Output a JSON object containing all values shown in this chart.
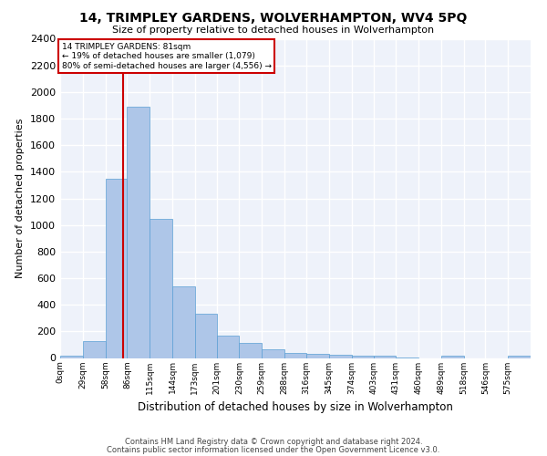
{
  "title": "14, TRIMPLEY GARDENS, WOLVERHAMPTON, WV4 5PQ",
  "subtitle": "Size of property relative to detached houses in Wolverhampton",
  "xlabel": "Distribution of detached houses by size in Wolverhampton",
  "ylabel": "Number of detached properties",
  "bar_color": "#aec6e8",
  "bar_edge_color": "#5a9fd4",
  "background_color": "#eef2fa",
  "grid_color": "#ffffff",
  "annotation_box_color": "#cc0000",
  "annotation_line_color": "#cc0000",
  "annotation_text_line1": "14 TRIMPLEY GARDENS: 81sqm",
  "annotation_text_line2": "← 19% of detached houses are smaller (1,079)",
  "annotation_text_line3": "80% of semi-detached houses are larger (4,556) →",
  "property_size": 81,
  "bin_edges": [
    0,
    29,
    58,
    86,
    115,
    144,
    173,
    201,
    230,
    259,
    288,
    316,
    345,
    374,
    403,
    431,
    460,
    489,
    518,
    546,
    575
  ],
  "bin_labels": [
    "0sqm",
    "29sqm",
    "58sqm",
    "86sqm",
    "115sqm",
    "144sqm",
    "173sqm",
    "201sqm",
    "230sqm",
    "259sqm",
    "288sqm",
    "316sqm",
    "345sqm",
    "374sqm",
    "403sqm",
    "431sqm",
    "460sqm",
    "489sqm",
    "518sqm",
    "546sqm",
    "575sqm"
  ],
  "bar_heights": [
    15,
    125,
    1350,
    1890,
    1045,
    540,
    335,
    170,
    110,
    65,
    40,
    30,
    25,
    20,
    15,
    5,
    0,
    20,
    0,
    0,
    15
  ],
  "ylim": [
    0,
    2400
  ],
  "yticks": [
    0,
    200,
    400,
    600,
    800,
    1000,
    1200,
    1400,
    1600,
    1800,
    2000,
    2200,
    2400
  ],
  "footer1": "Contains HM Land Registry data © Crown copyright and database right 2024.",
  "footer2": "Contains public sector information licensed under the Open Government Licence v3.0."
}
